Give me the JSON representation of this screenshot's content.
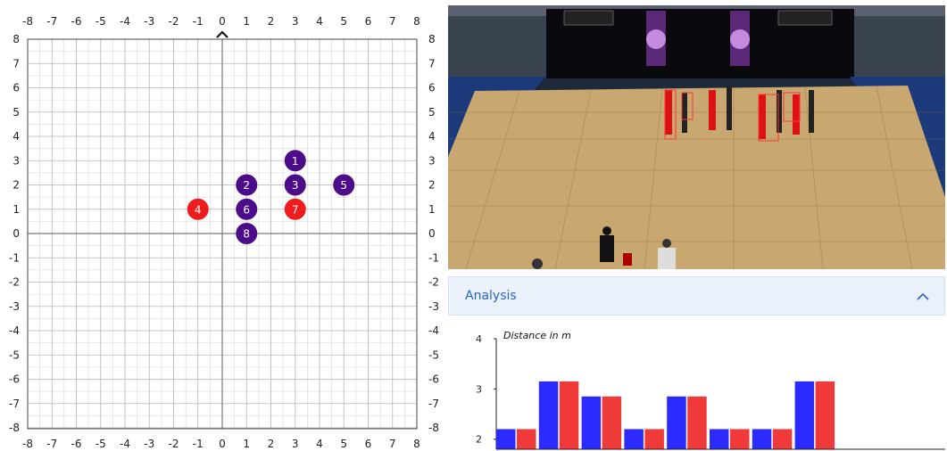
{
  "grid": {
    "x_ticks": [
      "-8",
      "-7",
      "-6",
      "-5",
      "-4",
      "-3",
      "-2",
      "-1",
      "0",
      "1",
      "2",
      "3",
      "4",
      "5",
      "6",
      "7",
      "8"
    ],
    "y_ticks": [
      "8",
      "7",
      "6",
      "5",
      "4",
      "3",
      "2",
      "1",
      "0",
      "-1",
      "-2",
      "-3",
      "-4",
      "-5",
      "-6",
      "-7",
      "-8"
    ],
    "dancers": [
      {
        "label": "1",
        "x": 3,
        "y": 3,
        "color": "#4b0b8a"
      },
      {
        "label": "2",
        "x": 1,
        "y": 2,
        "color": "#4b0b8a"
      },
      {
        "label": "3",
        "x": 3,
        "y": 2,
        "color": "#4b0b8a"
      },
      {
        "label": "4",
        "x": -1,
        "y": 1,
        "color": "#ee1c1c"
      },
      {
        "label": "5",
        "x": 5,
        "y": 2,
        "color": "#4b0b8a"
      },
      {
        "label": "6",
        "x": 1,
        "y": 1,
        "color": "#4b0b8a"
      },
      {
        "label": "7",
        "x": 3,
        "y": 1,
        "color": "#ee1c1c"
      },
      {
        "label": "8",
        "x": 1,
        "y": 0,
        "color": "#4b0b8a"
      }
    ],
    "colors": {
      "dancer_default": "#4b0b8a",
      "dancer_highlight": "#ee1c1c"
    }
  },
  "video": {
    "description_icon": "camera-frame"
  },
  "analysis": {
    "title": "Analysis",
    "collapse_icon": "chevron-up-icon"
  },
  "chart_data": {
    "type": "bar",
    "title": "Distance in m",
    "ylim": [
      1.8,
      4
    ],
    "y_ticks": [
      "4",
      "3",
      "2"
    ],
    "series": [
      {
        "color": "#2b2bff",
        "values": [
          2.2,
          3.15,
          2.85,
          2.2,
          2.85,
          2.2,
          2.2,
          3.15
        ]
      },
      {
        "color": "#f03a3a",
        "values": [
          2.2,
          3.15,
          2.85,
          2.2,
          2.85,
          2.2,
          2.2,
          3.15
        ]
      }
    ]
  }
}
